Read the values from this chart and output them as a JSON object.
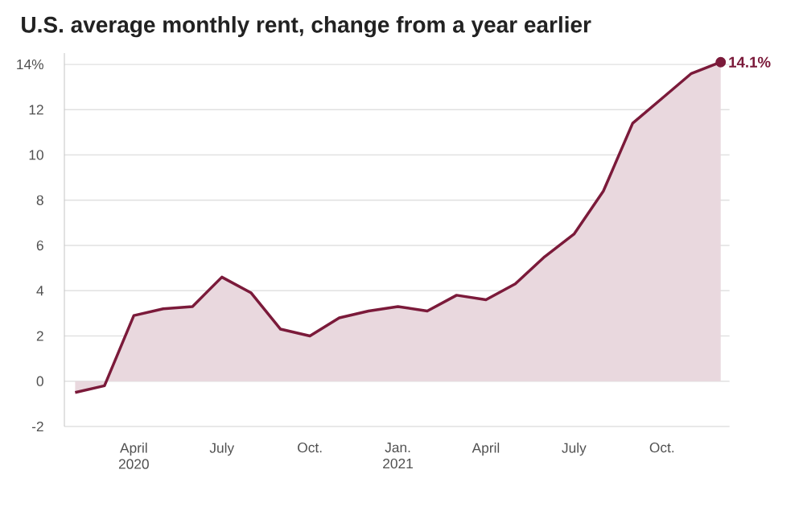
{
  "chart_data": {
    "type": "area",
    "title": "U.S. average monthly rent, change from a year earlier",
    "x": [
      "2020-02",
      "2020-03",
      "2020-04",
      "2020-05",
      "2020-06",
      "2020-07",
      "2020-08",
      "2020-09",
      "2020-10",
      "2020-11",
      "2020-12",
      "2021-01",
      "2021-02",
      "2021-03",
      "2021-04",
      "2021-05",
      "2021-06",
      "2021-07",
      "2021-08",
      "2021-09",
      "2021-10",
      "2021-11",
      "2021-12"
    ],
    "series": [
      {
        "color": "#7b1a3a",
        "values": [
          -0.5,
          -0.2,
          2.9,
          3.2,
          3.3,
          4.6,
          3.9,
          2.3,
          2.0,
          2.8,
          3.1,
          3.3,
          3.1,
          3.8,
          3.6,
          4.3,
          5.5,
          6.5,
          8.4,
          11.4,
          12.5,
          13.6,
          14.1
        ],
        "value_labels": [
          null,
          null,
          null,
          null,
          null,
          null,
          null,
          null,
          null,
          null,
          null,
          null,
          null,
          null,
          null,
          null,
          null,
          null,
          null,
          null,
          null,
          null,
          "14.1%"
        ]
      }
    ],
    "xlim": [
      "2020-01-20",
      "2021-12-10"
    ],
    "xticks": [
      {
        "value": "2020-04",
        "label": "April 2020"
      },
      {
        "value": "2020-07",
        "label": "July"
      },
      {
        "value": "2020-10",
        "label": "Oct."
      },
      {
        "value": "2021-01",
        "label": "Jan. 2021"
      },
      {
        "value": "2021-04",
        "label": "April"
      },
      {
        "value": "2021-07",
        "label": "July"
      },
      {
        "value": "2021-10",
        "label": "Oct."
      }
    ],
    "ylim": [
      -2,
      14.5
    ],
    "yticks": [
      -2,
      0,
      2,
      4,
      6,
      8,
      10,
      12,
      {
        "value": 14,
        "label": "14%"
      }
    ],
    "grid": "y"
  }
}
